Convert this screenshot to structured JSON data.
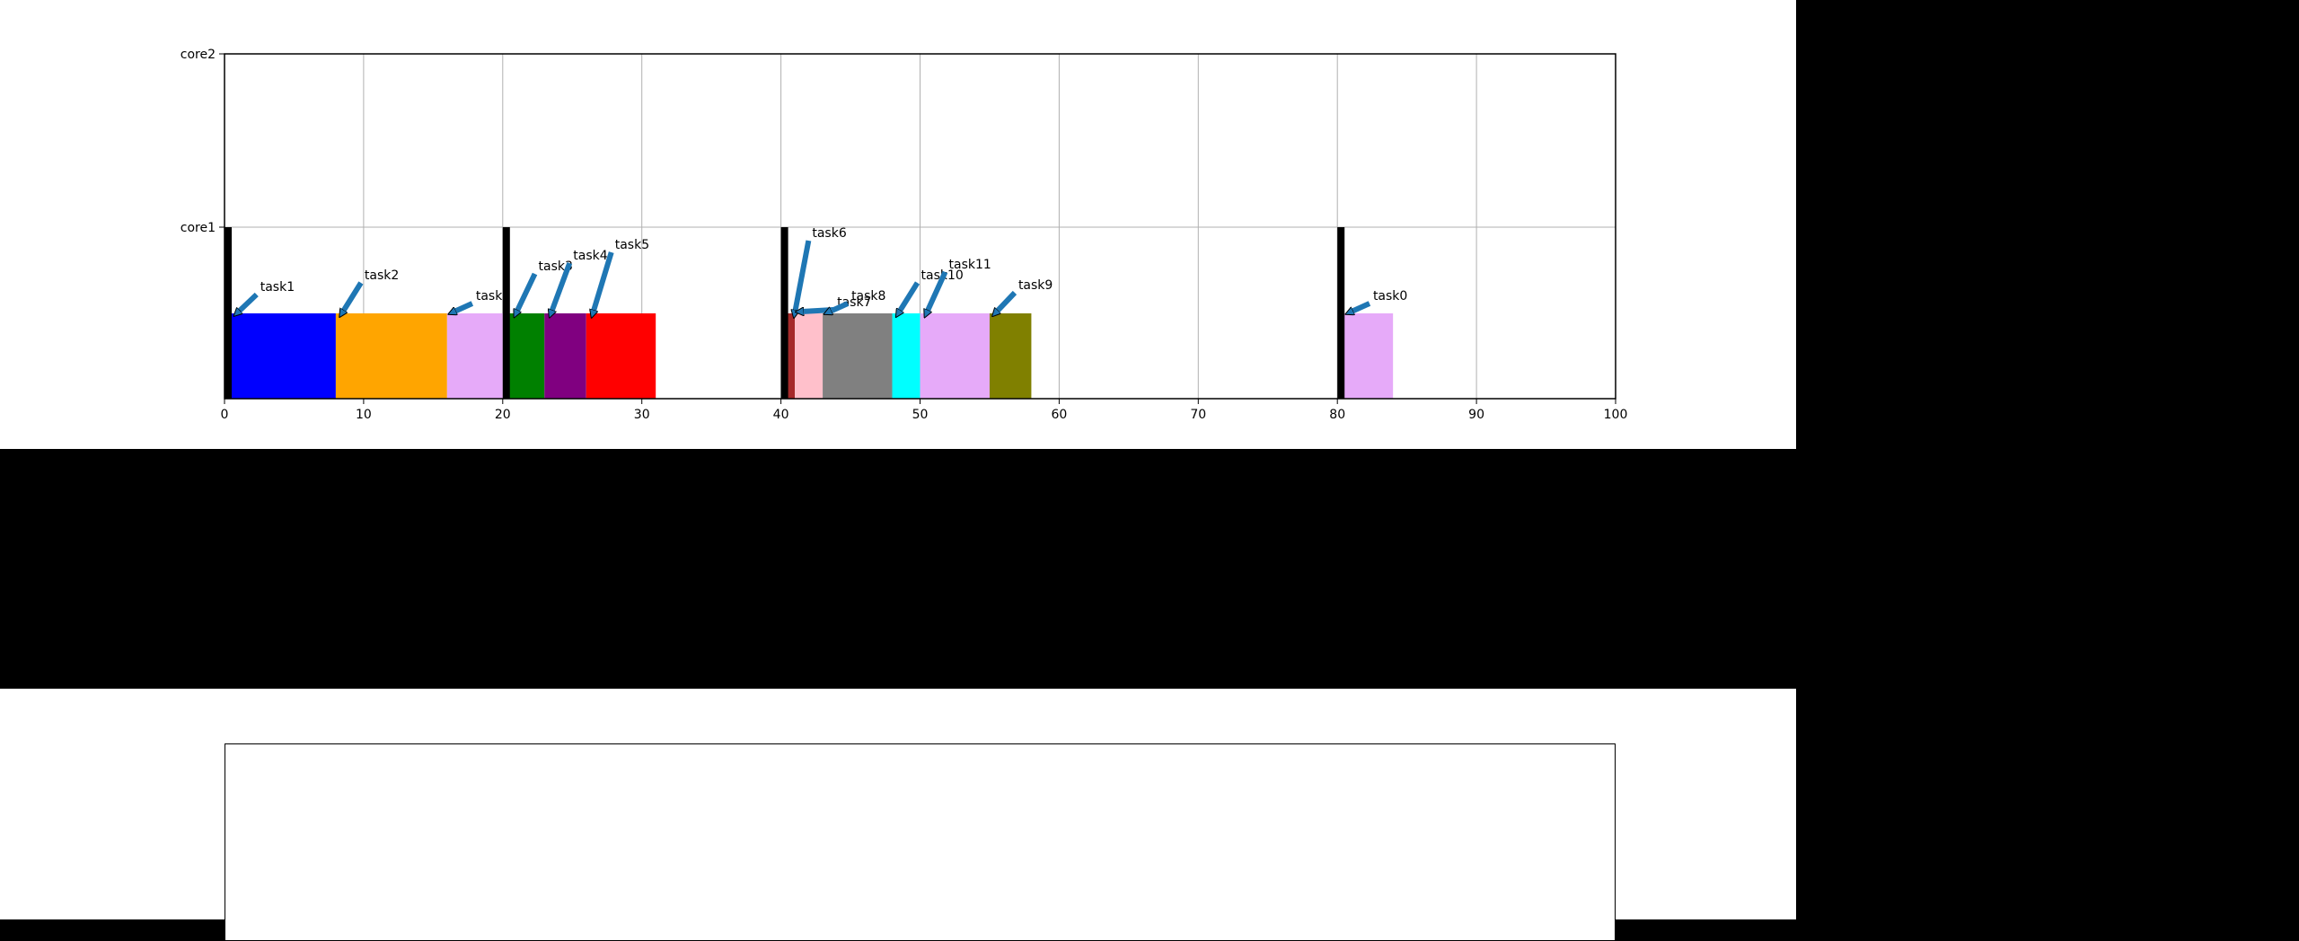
{
  "chart_data": [
    {
      "type": "gantt",
      "xlim": [
        0,
        100
      ],
      "x_ticks": [
        0,
        10,
        20,
        30,
        40,
        50,
        60,
        70,
        80,
        90,
        100
      ],
      "y_categories": [
        "core1",
        "core2"
      ],
      "grid": true,
      "bars": [
        {
          "task": "task1",
          "start": 0.5,
          "end": 8,
          "color": "#0000ff"
        },
        {
          "task": "task2",
          "start": 8,
          "end": 16,
          "color": "#ffa500"
        },
        {
          "task": "task0",
          "start": 16,
          "end": 20,
          "color": "#e6aaf9"
        },
        {
          "task": "task3",
          "start": 20.5,
          "end": 23,
          "color": "#008000"
        },
        {
          "task": "task4",
          "start": 23,
          "end": 26,
          "color": "#800080"
        },
        {
          "task": "task5",
          "start": 26,
          "end": 31,
          "color": "#ff0000"
        },
        {
          "task": "task6",
          "start": 40.5,
          "end": 41,
          "color": "#a52a2a"
        },
        {
          "task": "task7",
          "start": 41,
          "end": 43,
          "color": "#ffc0cb"
        },
        {
          "task": "task8",
          "start": 43,
          "end": 48,
          "color": "#808080"
        },
        {
          "task": "task10",
          "start": 48,
          "end": 50,
          "color": "#00ffff"
        },
        {
          "task": "task11",
          "start": 50,
          "end": 55,
          "color": "#e6aaf9"
        },
        {
          "task": "task9",
          "start": 55,
          "end": 58,
          "color": "#808000"
        },
        {
          "task": "task0",
          "start": 80.5,
          "end": 84,
          "color": "#e6aaf9"
        }
      ],
      "release_markers": [
        0,
        20,
        40,
        80
      ],
      "annotations": [
        {
          "label": "task1",
          "x": 0.5
        },
        {
          "label": "task2",
          "x": 8
        },
        {
          "label": "task0",
          "x": 16
        },
        {
          "label": "task3",
          "x": 20.5
        },
        {
          "label": "task4",
          "x": 23
        },
        {
          "label": "task5",
          "x": 26
        },
        {
          "label": "task6",
          "x": 40.5
        },
        {
          "label": "task7",
          "x": 41
        },
        {
          "label": "task8",
          "x": 43
        },
        {
          "label": "task10",
          "x": 48
        },
        {
          "label": "task11",
          "x": 50
        },
        {
          "label": "task9",
          "x": 55
        },
        {
          "label": "task0",
          "x": 80.5
        }
      ]
    }
  ]
}
